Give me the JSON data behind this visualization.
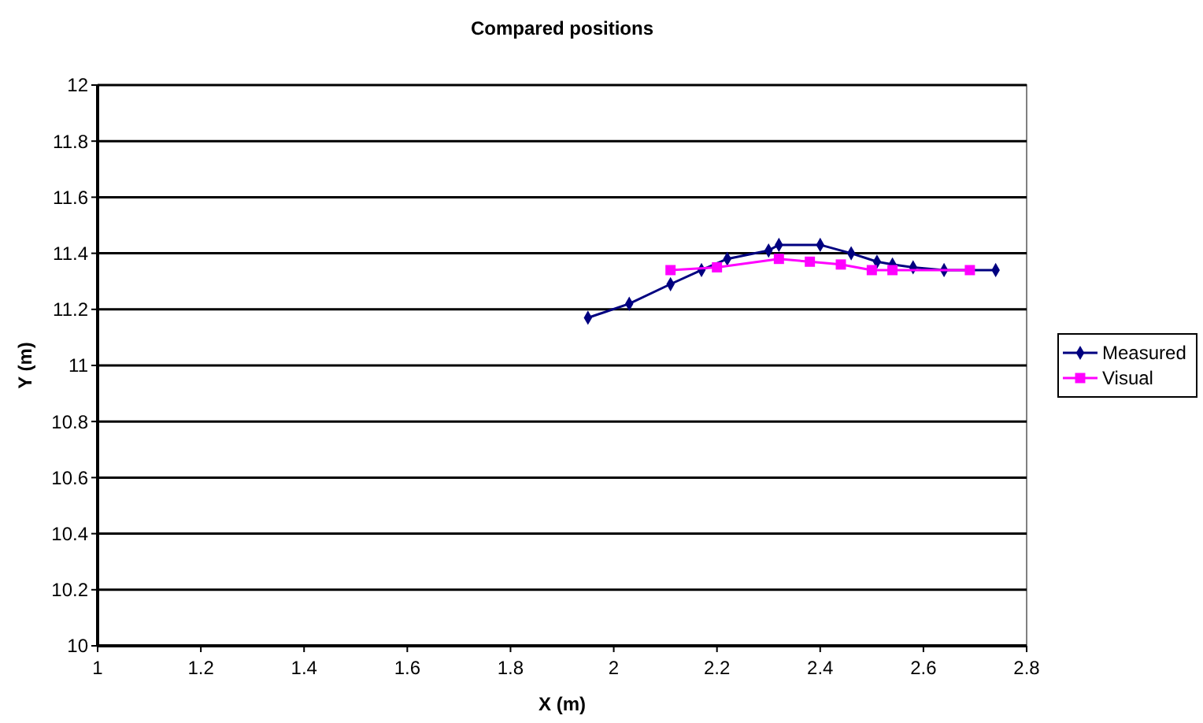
{
  "chart_data": {
    "type": "line",
    "title": "Compared positions",
    "xlabel": "X (m)",
    "ylabel": "Y (m)",
    "xlim": [
      1,
      2.8
    ],
    "xticks": [
      1,
      1.2,
      1.4,
      1.6,
      1.8,
      2,
      2.2,
      2.4,
      2.6,
      2.8
    ],
    "ylim": [
      10,
      12
    ],
    "yticks": [
      10,
      10.2,
      10.4,
      10.6,
      10.8,
      11,
      11.2,
      11.4,
      11.6,
      11.8,
      12
    ],
    "grid": "y",
    "legend": "right",
    "series": [
      {
        "name": "Measured",
        "color": "#000080",
        "marker": "diamond",
        "x": [
          1.95,
          2.03,
          2.11,
          2.17,
          2.22,
          2.3,
          2.32,
          2.4,
          2.46,
          2.51,
          2.54,
          2.58,
          2.64,
          2.74
        ],
        "values": [
          11.17,
          11.22,
          11.29,
          11.34,
          11.38,
          11.41,
          11.43,
          11.43,
          11.4,
          11.37,
          11.36,
          11.35,
          11.34,
          11.34
        ]
      },
      {
        "name": "Visual",
        "color": "#ff00ff",
        "marker": "square",
        "x": [
          2.11,
          2.2,
          2.32,
          2.38,
          2.44,
          2.5,
          2.54,
          2.69
        ],
        "values": [
          11.34,
          11.35,
          11.38,
          11.37,
          11.36,
          11.34,
          11.34,
          11.34
        ]
      }
    ]
  }
}
